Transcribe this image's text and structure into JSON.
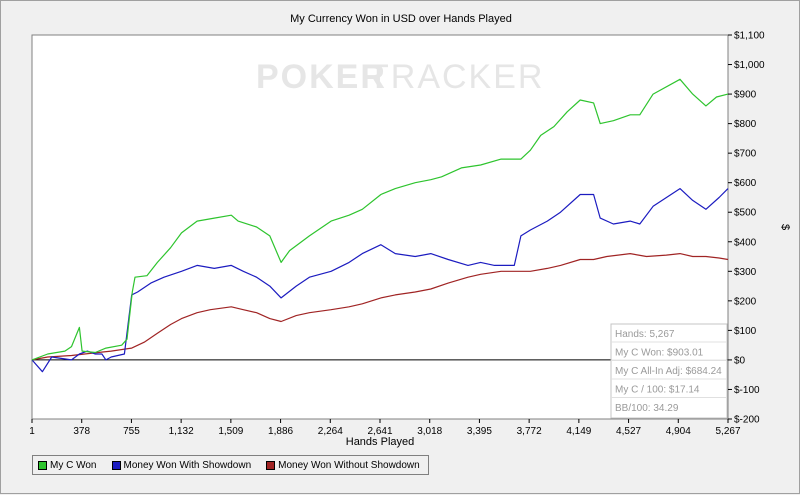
{
  "chart_data": {
    "type": "line",
    "title": "My Currency Won in USD over Hands Played",
    "xlabel": "Hands Played",
    "ylabel": "$",
    "xlim": [
      1,
      5267
    ],
    "ylim": [
      -200,
      1100
    ],
    "x_ticks": [
      "1",
      "378",
      "755",
      "1,132",
      "1,509",
      "1,886",
      "2,264",
      "2,641",
      "3,018",
      "3,395",
      "3,772",
      "4,149",
      "4,527",
      "4,904",
      "5,267"
    ],
    "y_ticks": [
      "$1,100",
      "$1,000",
      "$900",
      "$800",
      "$700",
      "$600",
      "$500",
      "$400",
      "$300",
      "$200",
      "$100",
      "$0",
      "$-100",
      "$-200"
    ],
    "watermark": [
      "POKER",
      "TRACKER"
    ],
    "series": [
      {
        "name": "My C Won",
        "color": "#2ec42e",
        "points": [
          [
            1,
            0
          ],
          [
            120,
            20
          ],
          [
            250,
            30
          ],
          [
            300,
            45
          ],
          [
            360,
            110
          ],
          [
            380,
            30
          ],
          [
            480,
            25
          ],
          [
            560,
            40
          ],
          [
            680,
            50
          ],
          [
            720,
            70
          ],
          [
            760,
            230
          ],
          [
            780,
            280
          ],
          [
            870,
            285
          ],
          [
            950,
            330
          ],
          [
            1050,
            380
          ],
          [
            1132,
            430
          ],
          [
            1250,
            470
          ],
          [
            1380,
            480
          ],
          [
            1509,
            490
          ],
          [
            1560,
            470
          ],
          [
            1700,
            450
          ],
          [
            1800,
            420
          ],
          [
            1886,
            330
          ],
          [
            1950,
            370
          ],
          [
            2100,
            420
          ],
          [
            2264,
            470
          ],
          [
            2400,
            490
          ],
          [
            2500,
            510
          ],
          [
            2641,
            560
          ],
          [
            2750,
            580
          ],
          [
            2900,
            600
          ],
          [
            3018,
            610
          ],
          [
            3100,
            620
          ],
          [
            3250,
            650
          ],
          [
            3395,
            660
          ],
          [
            3550,
            680
          ],
          [
            3700,
            680
          ],
          [
            3772,
            710
          ],
          [
            3850,
            760
          ],
          [
            3950,
            790
          ],
          [
            4050,
            840
          ],
          [
            4149,
            880
          ],
          [
            4250,
            870
          ],
          [
            4300,
            800
          ],
          [
            4400,
            810
          ],
          [
            4527,
            830
          ],
          [
            4600,
            830
          ],
          [
            4700,
            900
          ],
          [
            4904,
            950
          ],
          [
            5000,
            900
          ],
          [
            5100,
            860
          ],
          [
            5180,
            890
          ],
          [
            5267,
            900
          ]
        ]
      },
      {
        "name": "Money Won With Showdown",
        "color": "#1c1cc0",
        "points": [
          [
            1,
            0
          ],
          [
            80,
            -40
          ],
          [
            150,
            10
          ],
          [
            300,
            0
          ],
          [
            360,
            20
          ],
          [
            420,
            30
          ],
          [
            480,
            20
          ],
          [
            530,
            20
          ],
          [
            560,
            0
          ],
          [
            600,
            10
          ],
          [
            700,
            20
          ],
          [
            755,
            220
          ],
          [
            800,
            230
          ],
          [
            900,
            260
          ],
          [
            1000,
            280
          ],
          [
            1132,
            300
          ],
          [
            1250,
            320
          ],
          [
            1380,
            310
          ],
          [
            1509,
            320
          ],
          [
            1600,
            300
          ],
          [
            1700,
            280
          ],
          [
            1800,
            250
          ],
          [
            1886,
            210
          ],
          [
            2000,
            250
          ],
          [
            2100,
            280
          ],
          [
            2264,
            300
          ],
          [
            2400,
            330
          ],
          [
            2500,
            360
          ],
          [
            2641,
            390
          ],
          [
            2750,
            360
          ],
          [
            2900,
            350
          ],
          [
            3018,
            360
          ],
          [
            3150,
            340
          ],
          [
            3300,
            320
          ],
          [
            3395,
            330
          ],
          [
            3500,
            320
          ],
          [
            3650,
            320
          ],
          [
            3700,
            420
          ],
          [
            3772,
            440
          ],
          [
            3900,
            470
          ],
          [
            4000,
            500
          ],
          [
            4149,
            560
          ],
          [
            4250,
            560
          ],
          [
            4300,
            480
          ],
          [
            4400,
            460
          ],
          [
            4527,
            470
          ],
          [
            4600,
            460
          ],
          [
            4700,
            520
          ],
          [
            4904,
            580
          ],
          [
            5000,
            540
          ],
          [
            5100,
            510
          ],
          [
            5200,
            550
          ],
          [
            5267,
            580
          ]
        ]
      },
      {
        "name": "Money Won Without Showdown",
        "color": "#a02424",
        "points": [
          [
            1,
            0
          ],
          [
            120,
            10
          ],
          [
            300,
            15
          ],
          [
            400,
            20
          ],
          [
            500,
            25
          ],
          [
            600,
            30
          ],
          [
            755,
            40
          ],
          [
            850,
            60
          ],
          [
            950,
            90
          ],
          [
            1050,
            120
          ],
          [
            1132,
            140
          ],
          [
            1250,
            160
          ],
          [
            1350,
            170
          ],
          [
            1509,
            180
          ],
          [
            1600,
            170
          ],
          [
            1700,
            160
          ],
          [
            1800,
            140
          ],
          [
            1886,
            130
          ],
          [
            2000,
            150
          ],
          [
            2100,
            160
          ],
          [
            2264,
            170
          ],
          [
            2400,
            180
          ],
          [
            2500,
            190
          ],
          [
            2641,
            210
          ],
          [
            2750,
            220
          ],
          [
            2900,
            230
          ],
          [
            3018,
            240
          ],
          [
            3150,
            260
          ],
          [
            3300,
            280
          ],
          [
            3395,
            290
          ],
          [
            3550,
            300
          ],
          [
            3700,
            300
          ],
          [
            3772,
            300
          ],
          [
            3900,
            310
          ],
          [
            4000,
            320
          ],
          [
            4149,
            340
          ],
          [
            4250,
            340
          ],
          [
            4350,
            350
          ],
          [
            4527,
            360
          ],
          [
            4650,
            350
          ],
          [
            4800,
            355
          ],
          [
            4904,
            360
          ],
          [
            5000,
            350
          ],
          [
            5100,
            350
          ],
          [
            5200,
            345
          ],
          [
            5267,
            340
          ]
        ]
      }
    ],
    "stats": [
      "Hands: 5,267",
      "My C Won: $903.01",
      "My C All-In Adj: $684.24",
      "My C / 100: $17.14",
      "BB/100: 34.29"
    ],
    "legend_position": "bottom-left",
    "grid": false
  }
}
